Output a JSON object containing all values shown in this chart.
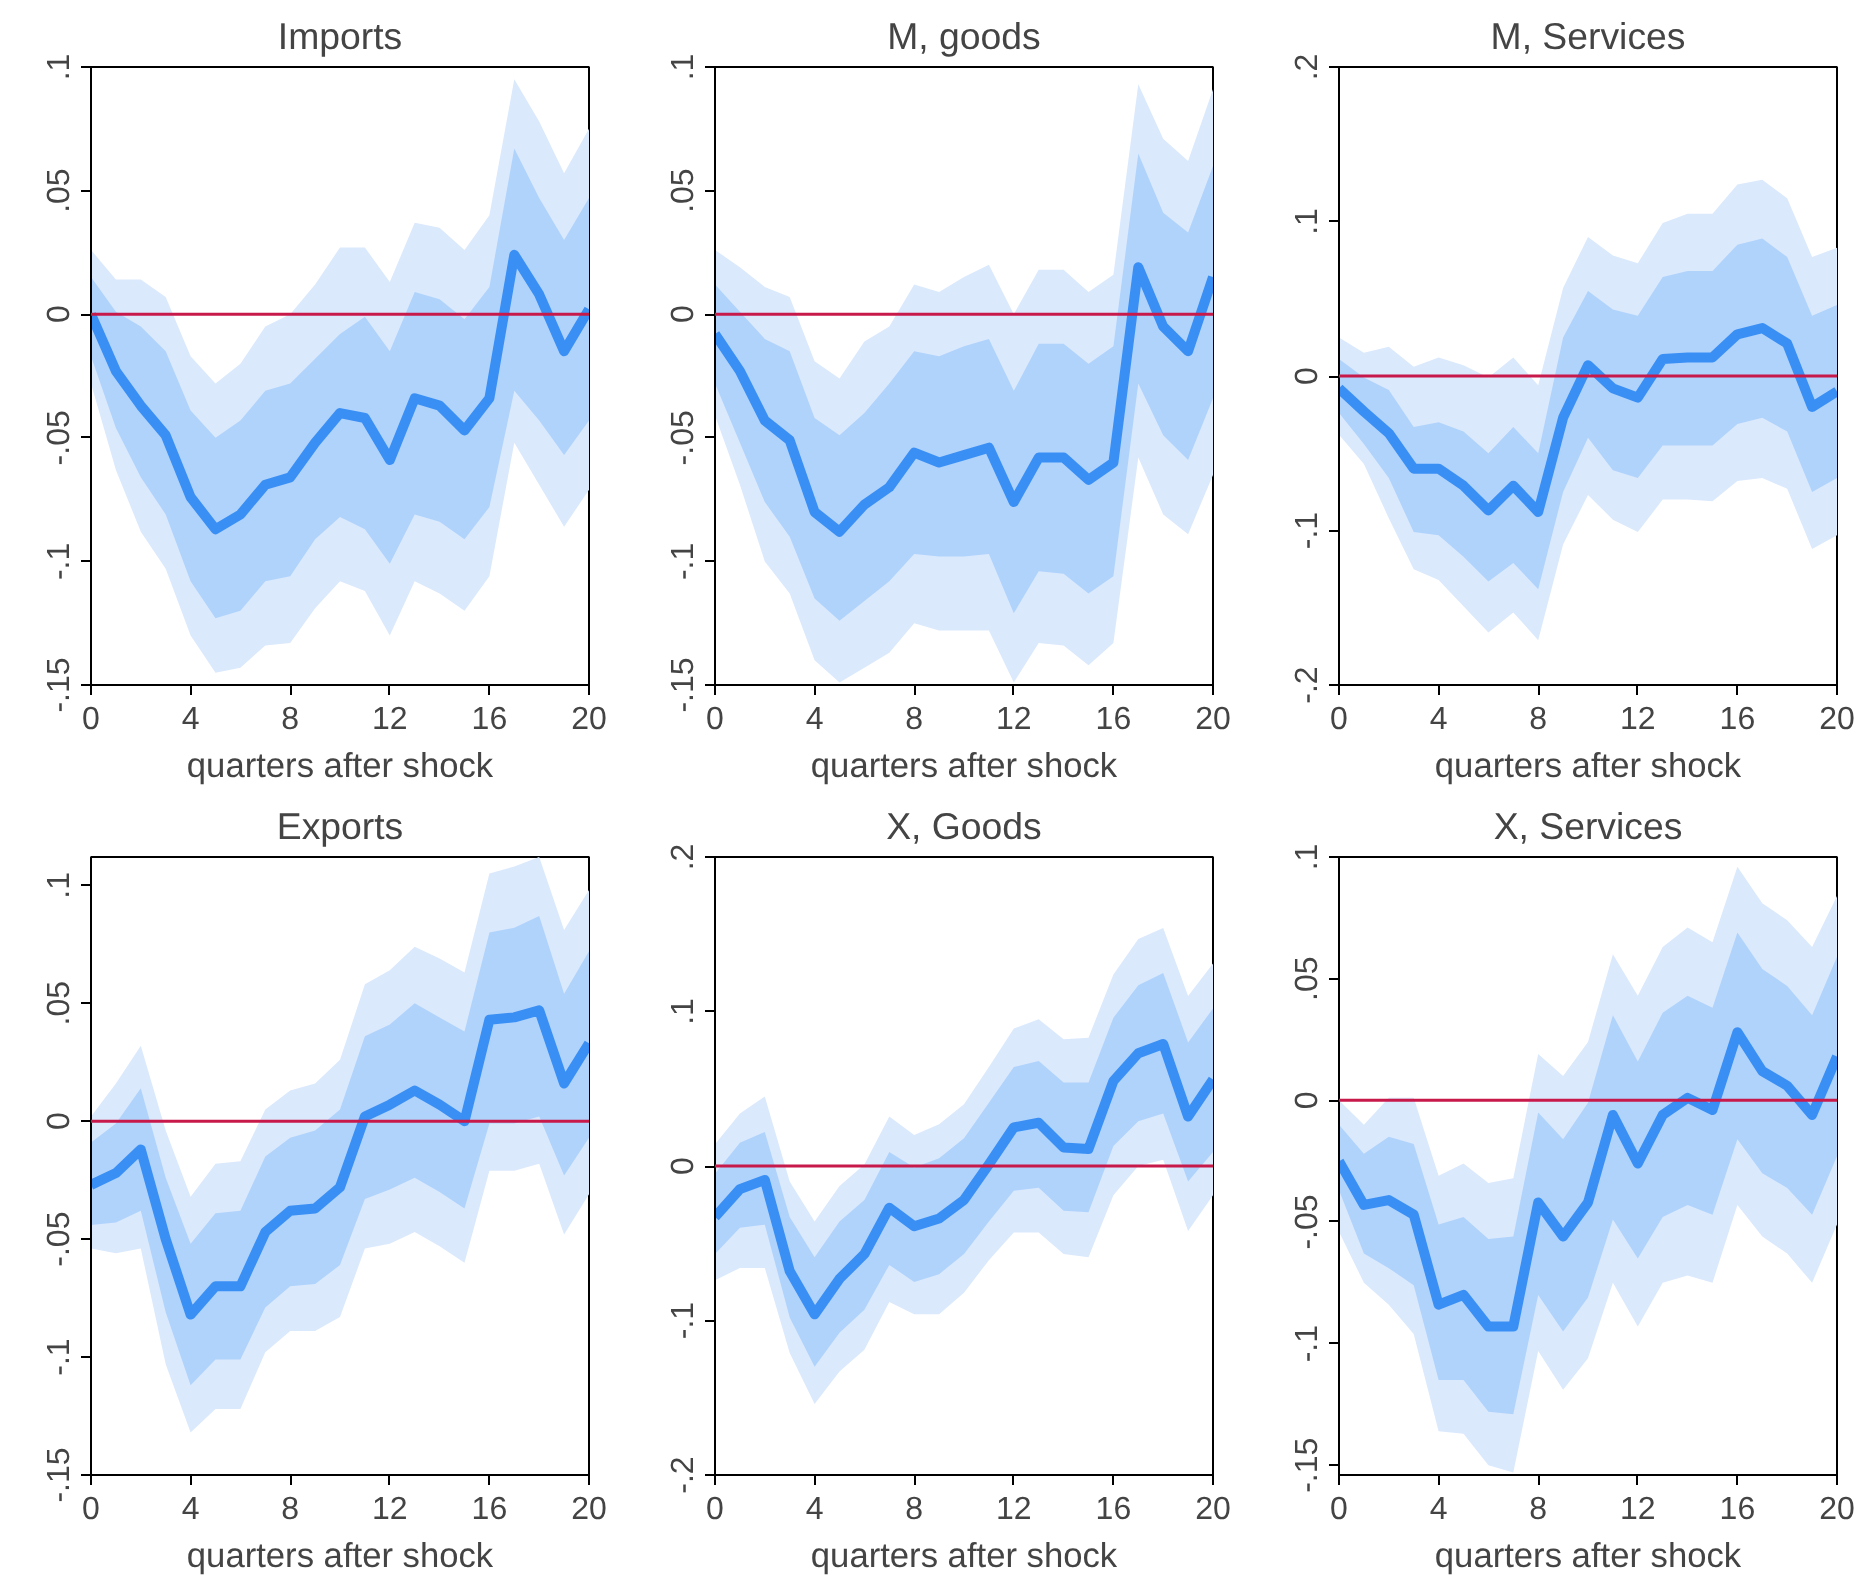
{
  "chart_data": [
    {
      "type": "line",
      "title": "Imports",
      "xlabel": "quarters after shock",
      "xlim": [
        0,
        20
      ],
      "xticks": [
        0,
        4,
        8,
        12,
        16,
        20
      ],
      "ylim": [
        -0.15,
        0.1
      ],
      "yticks": [
        {
          "value": -0.15,
          "label": "-.15"
        },
        {
          "value": -0.1,
          "label": "-.1"
        },
        {
          "value": -0.05,
          "label": "-.05"
        },
        0,
        {
          "value": 0.05,
          "label": ".05"
        },
        {
          "value": 0.1,
          "label": ".1"
        }
      ],
      "grid": false,
      "ref_lines": [
        {
          "axis": "y",
          "value": 0,
          "color": "#c8194b"
        }
      ],
      "x": [
        0,
        1,
        2,
        3,
        4,
        5,
        6,
        7,
        8,
        9,
        10,
        11,
        12,
        13,
        14,
        15,
        16,
        17,
        18,
        19,
        20
      ],
      "series": [
        {
          "color": "#dbe9fd",
          "values": [
            null,
            null,
            null,
            null,
            null,
            null,
            null,
            null,
            null,
            null,
            null,
            null,
            null,
            null,
            null,
            null,
            null,
            null,
            null,
            null,
            null
          ],
          "lower": [
            -0.028,
            -0.063,
            -0.088,
            -0.103,
            -0.13,
            -0.145,
            -0.143,
            -0.134,
            -0.133,
            -0.119,
            -0.108,
            -0.112,
            -0.13,
            -0.108,
            -0.113,
            -0.12,
            -0.106,
            -0.052,
            -0.069,
            -0.086,
            -0.071
          ],
          "upper": [
            0.026,
            0.014,
            0.014,
            0.007,
            -0.017,
            -0.028,
            -0.02,
            -0.005,
            0,
            0.012,
            0.027,
            0.027,
            0.013,
            0.037,
            0.035,
            0.026,
            0.04,
            0.095,
            0.078,
            0.057,
            0.075
          ]
        },
        {
          "color": "#b0d3fc",
          "values": [
            null,
            null,
            null,
            null,
            null,
            null,
            null,
            null,
            null,
            null,
            null,
            null,
            null,
            null,
            null,
            null,
            null,
            null,
            null,
            null,
            null
          ],
          "lower": [
            -0.017,
            -0.046,
            -0.066,
            -0.081,
            -0.108,
            -0.123,
            -0.12,
            -0.108,
            -0.106,
            -0.091,
            -0.082,
            -0.087,
            -0.101,
            -0.081,
            -0.084,
            -0.091,
            -0.078,
            -0.031,
            -0.043,
            -0.057,
            -0.043
          ],
          "upper": [
            0.015,
            0.001,
            -0.005,
            -0.015,
            -0.039,
            -0.05,
            -0.043,
            -0.031,
            -0.028,
            -0.018,
            -0.008,
            -0.001,
            -0.015,
            0.009,
            0.006,
            -0.002,
            0.011,
            0.067,
            0.047,
            0.03,
            0.047
          ]
        },
        {
          "color": "#3a8ff5",
          "values": [
            0,
            -0.023,
            -0.037,
            -0.049,
            -0.074,
            -0.087,
            -0.081,
            -0.069,
            -0.066,
            -0.052,
            -0.04,
            -0.042,
            -0.059,
            -0.034,
            -0.037,
            -0.047,
            -0.034,
            0.024,
            0.008,
            -0.015,
            0.002
          ]
        }
      ]
    },
    {
      "type": "line",
      "title": "M, goods",
      "xlabel": "quarters after shock",
      "xlim": [
        0,
        20
      ],
      "xticks": [
        0,
        4,
        8,
        12,
        16,
        20
      ],
      "ylim": [
        -0.15,
        0.1
      ],
      "yticks": [
        {
          "value": -0.15,
          "label": "-.15"
        },
        {
          "value": -0.1,
          "label": "-.1"
        },
        {
          "value": -0.05,
          "label": "-.05"
        },
        0,
        {
          "value": 0.05,
          "label": ".05"
        },
        {
          "value": 0.1,
          "label": ".1"
        }
      ],
      "grid": false,
      "ref_lines": [
        {
          "axis": "y",
          "value": 0,
          "color": "#c8194b"
        }
      ],
      "x": [
        0,
        1,
        2,
        3,
        4,
        5,
        6,
        7,
        8,
        9,
        10,
        11,
        12,
        13,
        14,
        15,
        16,
        17,
        18,
        19,
        20
      ],
      "series": [
        {
          "color": "#dbe9fd",
          "values": [
            null,
            null,
            null,
            null,
            null,
            null,
            null,
            null,
            null,
            null,
            null,
            null,
            null,
            null,
            null,
            null,
            null,
            null,
            null,
            null,
            null
          ],
          "lower": [
            -0.041,
            -0.069,
            -0.1,
            -0.113,
            -0.14,
            -0.149,
            -0.143,
            -0.137,
            -0.125,
            -0.128,
            -0.128,
            -0.128,
            -0.149,
            -0.133,
            -0.134,
            -0.142,
            -0.133,
            -0.058,
            -0.081,
            -0.089,
            -0.065
          ],
          "upper": [
            0.026,
            0.019,
            0.011,
            0.007,
            -0.019,
            -0.026,
            -0.011,
            -0.005,
            0.012,
            0.009,
            0.015,
            0.02,
            0,
            0.018,
            0.018,
            0.009,
            0.016,
            0.093,
            0.071,
            0.062,
            0.091
          ]
        },
        {
          "color": "#b0d3fc",
          "values": [
            null,
            null,
            null,
            null,
            null,
            null,
            null,
            null,
            null,
            null,
            null,
            null,
            null,
            null,
            null,
            null,
            null,
            null,
            null,
            null,
            null
          ],
          "lower": [
            -0.028,
            -0.052,
            -0.076,
            -0.09,
            -0.115,
            -0.124,
            -0.116,
            -0.108,
            -0.097,
            -0.098,
            -0.098,
            -0.097,
            -0.121,
            -0.104,
            -0.105,
            -0.113,
            -0.106,
            -0.028,
            -0.049,
            -0.059,
            -0.034
          ],
          "upper": [
            0.012,
            0.001,
            -0.01,
            -0.015,
            -0.042,
            -0.049,
            -0.04,
            -0.028,
            -0.015,
            -0.017,
            -0.013,
            -0.01,
            -0.031,
            -0.012,
            -0.012,
            -0.02,
            -0.013,
            0.065,
            0.041,
            0.033,
            0.06
          ]
        },
        {
          "color": "#3a8ff5",
          "values": [
            -0.008,
            -0.023,
            -0.043,
            -0.051,
            -0.08,
            -0.088,
            -0.077,
            -0.07,
            -0.056,
            -0.06,
            -0.057,
            -0.054,
            -0.076,
            -0.058,
            -0.058,
            -0.067,
            -0.06,
            0.019,
            -0.005,
            -0.015,
            0.015
          ]
        }
      ]
    },
    {
      "type": "line",
      "title": "M, Services",
      "xlabel": "quarters after shock",
      "xlim": [
        0,
        20
      ],
      "xticks": [
        0,
        4,
        8,
        12,
        16,
        20
      ],
      "ylim": [
        -0.2,
        0.2
      ],
      "yticks": [
        {
          "value": -0.2,
          "label": "-.2"
        },
        {
          "value": -0.1,
          "label": "-.1"
        },
        0,
        {
          "value": 0.1,
          "label": ".1"
        },
        {
          "value": 0.2,
          "label": ".2"
        }
      ],
      "grid": false,
      "ref_lines": [
        {
          "axis": "y",
          "value": 0,
          "color": "#c8194b"
        }
      ],
      "x": [
        0,
        1,
        2,
        3,
        4,
        5,
        6,
        7,
        8,
        9,
        10,
        11,
        12,
        13,
        14,
        15,
        16,
        17,
        18,
        19,
        20
      ],
      "series": [
        {
          "color": "#dbe9fd",
          "values": [
            null,
            null,
            null,
            null,
            null,
            null,
            null,
            null,
            null,
            null,
            null,
            null,
            null,
            null,
            null,
            null,
            null,
            null,
            null,
            null,
            null
          ],
          "lower": [
            -0.038,
            -0.057,
            -0.092,
            -0.125,
            -0.132,
            -0.149,
            -0.166,
            -0.153,
            -0.171,
            -0.109,
            -0.077,
            -0.093,
            -0.101,
            -0.08,
            -0.08,
            -0.081,
            -0.068,
            -0.066,
            -0.073,
            -0.112,
            -0.103
          ],
          "upper": [
            0.025,
            0.015,
            0.019,
            0.006,
            0.012,
            0.007,
            -0.001,
            0.012,
            -0.006,
            0.057,
            0.09,
            0.078,
            0.073,
            0.099,
            0.105,
            0.105,
            0.124,
            0.127,
            0.115,
            0.077,
            0.083
          ]
        },
        {
          "color": "#b0d3fc",
          "values": [
            null,
            null,
            null,
            null,
            null,
            null,
            null,
            null,
            null,
            null,
            null,
            null,
            null,
            null,
            null,
            null,
            null,
            null,
            null,
            null,
            null
          ],
          "lower": [
            -0.024,
            -0.044,
            -0.066,
            -0.101,
            -0.103,
            -0.117,
            -0.133,
            -0.121,
            -0.138,
            -0.075,
            -0.04,
            -0.061,
            -0.066,
            -0.045,
            -0.045,
            -0.045,
            -0.031,
            -0.027,
            -0.036,
            -0.075,
            -0.066
          ],
          "upper": [
            0.011,
            -0.001,
            -0.009,
            -0.033,
            -0.03,
            -0.036,
            -0.05,
            -0.033,
            -0.05,
            0.025,
            0.055,
            0.043,
            0.039,
            0.064,
            0.068,
            0.068,
            0.085,
            0.089,
            0.077,
            0.039,
            0.046
          ]
        },
        {
          "color": "#3a8ff5",
          "values": [
            -0.008,
            -0.023,
            -0.037,
            -0.06,
            -0.06,
            -0.071,
            -0.087,
            -0.071,
            -0.088,
            -0.027,
            0.007,
            -0.008,
            -0.014,
            0.011,
            0.012,
            0.012,
            0.027,
            0.031,
            0.021,
            -0.02,
            -0.01
          ]
        }
      ]
    },
    {
      "type": "line",
      "title": "Exports",
      "xlabel": "quarters after shock",
      "xlim": [
        0,
        20
      ],
      "xticks": [
        0,
        4,
        8,
        12,
        16,
        20
      ],
      "ylim": [
        -0.15,
        0.112
      ],
      "yticks": [
        {
          "value": -0.15,
          "label": "-.15"
        },
        {
          "value": -0.1,
          "label": "-.1"
        },
        {
          "value": -0.05,
          "label": "-.05"
        },
        0,
        {
          "value": 0.05,
          "label": ".05"
        },
        {
          "value": 0.1,
          "label": ".1"
        }
      ],
      "grid": false,
      "ref_lines": [
        {
          "axis": "y",
          "value": 0,
          "color": "#c8194b"
        }
      ],
      "x": [
        0,
        1,
        2,
        3,
        4,
        5,
        6,
        7,
        8,
        9,
        10,
        11,
        12,
        13,
        14,
        15,
        16,
        17,
        18,
        19,
        20
      ],
      "series": [
        {
          "color": "#dbe9fd",
          "values": [
            null,
            null,
            null,
            null,
            null,
            null,
            null,
            null,
            null,
            null,
            null,
            null,
            null,
            null,
            null,
            null,
            null,
            null,
            null,
            null,
            null
          ],
          "lower": [
            -0.054,
            -0.056,
            -0.054,
            -0.103,
            -0.132,
            -0.122,
            -0.122,
            -0.098,
            -0.089,
            -0.089,
            -0.083,
            -0.054,
            -0.052,
            -0.047,
            -0.053,
            -0.06,
            -0.021,
            -0.021,
            -0.018,
            -0.048,
            -0.031
          ],
          "upper": [
            0.002,
            0.016,
            0.032,
            -0.004,
            -0.032,
            -0.018,
            -0.017,
            0.005,
            0.013,
            0.016,
            0.026,
            0.058,
            0.064,
            0.074,
            0.069,
            0.063,
            0.105,
            0.108,
            0.112,
            0.081,
            0.098
          ]
        },
        {
          "color": "#b0d3fc",
          "values": [
            null,
            null,
            null,
            null,
            null,
            null,
            null,
            null,
            null,
            null,
            null,
            null,
            null,
            null,
            null,
            null,
            null,
            null,
            null,
            null,
            null
          ],
          "lower": [
            -0.044,
            -0.043,
            -0.038,
            -0.081,
            -0.112,
            -0.101,
            -0.101,
            -0.079,
            -0.07,
            -0.069,
            -0.061,
            -0.033,
            -0.029,
            -0.024,
            -0.03,
            -0.037,
            -0.001,
            -0.001,
            0.002,
            -0.023,
            -0.007
          ],
          "upper": [
            -0.009,
            -0.001,
            0.014,
            -0.024,
            -0.052,
            -0.039,
            -0.038,
            -0.015,
            -0.007,
            -0.004,
            0.005,
            0.036,
            0.041,
            0.05,
            0.044,
            0.038,
            0.08,
            0.082,
            0.087,
            0.054,
            0.072
          ]
        },
        {
          "color": "#3a8ff5",
          "values": [
            -0.027,
            -0.022,
            -0.012,
            -0.05,
            -0.082,
            -0.07,
            -0.07,
            -0.047,
            -0.038,
            -0.037,
            -0.028,
            0.002,
            0.007,
            0.013,
            0.007,
            0,
            0.043,
            0.044,
            0.047,
            0.016,
            0.033
          ]
        }
      ]
    },
    {
      "type": "line",
      "title": "X, Goods",
      "xlabel": "quarters after shock",
      "xlim": [
        0,
        20
      ],
      "xticks": [
        0,
        4,
        8,
        12,
        16,
        20
      ],
      "ylim": [
        -0.2,
        0.2
      ],
      "yticks": [
        {
          "value": -0.2,
          "label": "-.2"
        },
        {
          "value": -0.1,
          "label": "-.1"
        },
        0,
        {
          "value": 0.1,
          "label": ".1"
        },
        {
          "value": 0.2,
          "label": ".2"
        }
      ],
      "grid": false,
      "ref_lines": [
        {
          "axis": "y",
          "value": 0,
          "color": "#c8194b"
        }
      ],
      "x": [
        0,
        1,
        2,
        3,
        4,
        5,
        6,
        7,
        8,
        9,
        10,
        11,
        12,
        13,
        14,
        15,
        16,
        17,
        18,
        19,
        20
      ],
      "series": [
        {
          "color": "#dbe9fd",
          "values": [
            null,
            null,
            null,
            null,
            null,
            null,
            null,
            null,
            null,
            null,
            null,
            null,
            null,
            null,
            null,
            null,
            null,
            null,
            null,
            null,
            null
          ],
          "lower": [
            -0.074,
            -0.066,
            -0.066,
            -0.121,
            -0.154,
            -0.133,
            -0.119,
            -0.088,
            -0.096,
            -0.096,
            -0.082,
            -0.061,
            -0.043,
            -0.043,
            -0.057,
            -0.059,
            -0.019,
            0,
            0.004,
            -0.042,
            -0.019
          ],
          "upper": [
            0.014,
            0.034,
            0.045,
            -0.01,
            -0.036,
            -0.013,
            0.001,
            0.032,
            0.02,
            0.027,
            0.04,
            0.064,
            0.089,
            0.095,
            0.082,
            0.083,
            0.124,
            0.147,
            0.154,
            0.11,
            0.131
          ]
        },
        {
          "color": "#b0d3fc",
          "values": [
            null,
            null,
            null,
            null,
            null,
            null,
            null,
            null,
            null,
            null,
            null,
            null,
            null,
            null,
            null,
            null,
            null,
            null,
            null,
            null,
            null
          ],
          "lower": [
            -0.057,
            -0.04,
            -0.038,
            -0.098,
            -0.13,
            -0.108,
            -0.093,
            -0.064,
            -0.075,
            -0.07,
            -0.057,
            -0.036,
            -0.016,
            -0.014,
            -0.029,
            -0.03,
            0.013,
            0.029,
            0.034,
            -0.01,
            0.009
          ],
          "upper": [
            -0.005,
            0.015,
            0.022,
            -0.033,
            -0.059,
            -0.036,
            -0.022,
            0.009,
            -0.001,
            0.005,
            0.018,
            0.041,
            0.064,
            0.068,
            0.054,
            0.054,
            0.096,
            0.117,
            0.125,
            0.08,
            0.102
          ]
        },
        {
          "color": "#3a8ff5",
          "values": [
            -0.033,
            -0.015,
            -0.009,
            -0.068,
            -0.096,
            -0.073,
            -0.057,
            -0.027,
            -0.039,
            -0.034,
            -0.022,
            0.001,
            0.025,
            0.028,
            0.012,
            0.011,
            0.055,
            0.073,
            0.079,
            0.032,
            0.056
          ]
        }
      ]
    },
    {
      "type": "line",
      "title": "X, Services",
      "xlabel": "quarters after shock",
      "xlim": [
        0,
        20
      ],
      "xticks": [
        0,
        4,
        8,
        12,
        16,
        20
      ],
      "ylim": [
        -0.154,
        0.1
      ],
      "yticks": [
        {
          "value": -0.15,
          "label": "-.15"
        },
        {
          "value": -0.1,
          "label": "-.1"
        },
        {
          "value": -0.05,
          "label": "-.05"
        },
        0,
        {
          "value": 0.05,
          "label": ".05"
        },
        {
          "value": 0.1,
          "label": ".1"
        }
      ],
      "grid": false,
      "ref_lines": [
        {
          "axis": "y",
          "value": 0,
          "color": "#c8194b"
        }
      ],
      "x": [
        0,
        1,
        2,
        3,
        4,
        5,
        6,
        7,
        8,
        9,
        10,
        11,
        12,
        13,
        14,
        15,
        16,
        17,
        18,
        19,
        20
      ],
      "series": [
        {
          "color": "#dbe9fd",
          "values": [
            null,
            null,
            null,
            null,
            null,
            null,
            null,
            null,
            null,
            null,
            null,
            null,
            null,
            null,
            null,
            null,
            null,
            null,
            null,
            null,
            null
          ],
          "lower": [
            -0.054,
            -0.075,
            -0.084,
            -0.096,
            -0.136,
            -0.137,
            -0.15,
            -0.153,
            -0.103,
            -0.119,
            -0.106,
            -0.075,
            -0.093,
            -0.075,
            -0.072,
            -0.075,
            -0.043,
            -0.056,
            -0.063,
            -0.075,
            -0.051
          ],
          "upper": [
            0,
            -0.01,
            0.001,
            0.001,
            -0.031,
            -0.026,
            -0.034,
            -0.032,
            0.019,
            0.01,
            0.024,
            0.06,
            0.043,
            0.063,
            0.071,
            0.065,
            0.096,
            0.081,
            0.074,
            0.063,
            0.084
          ]
        },
        {
          "color": "#b0d3fc",
          "values": [
            null,
            null,
            null,
            null,
            null,
            null,
            null,
            null,
            null,
            null,
            null,
            null,
            null,
            null,
            null,
            null,
            null,
            null,
            null,
            null,
            null
          ],
          "lower": [
            -0.037,
            -0.063,
            -0.069,
            -0.076,
            -0.115,
            -0.115,
            -0.128,
            -0.129,
            -0.08,
            -0.095,
            -0.081,
            -0.049,
            -0.065,
            -0.048,
            -0.043,
            -0.047,
            -0.016,
            -0.03,
            -0.036,
            -0.047,
            -0.023
          ],
          "upper": [
            -0.01,
            -0.022,
            -0.015,
            -0.018,
            -0.051,
            -0.048,
            -0.057,
            -0.056,
            -0.005,
            -0.016,
            -0.001,
            0.035,
            0.016,
            0.036,
            0.043,
            0.038,
            0.069,
            0.054,
            0.047,
            0.035,
            0.059
          ]
        },
        {
          "color": "#3a8ff5",
          "values": [
            -0.025,
            -0.043,
            -0.041,
            -0.047,
            -0.084,
            -0.08,
            -0.093,
            -0.093,
            -0.042,
            -0.056,
            -0.042,
            -0.006,
            -0.026,
            -0.006,
            0.001,
            -0.004,
            0.028,
            0.012,
            0.006,
            -0.006,
            0.018
          ]
        }
      ]
    }
  ]
}
